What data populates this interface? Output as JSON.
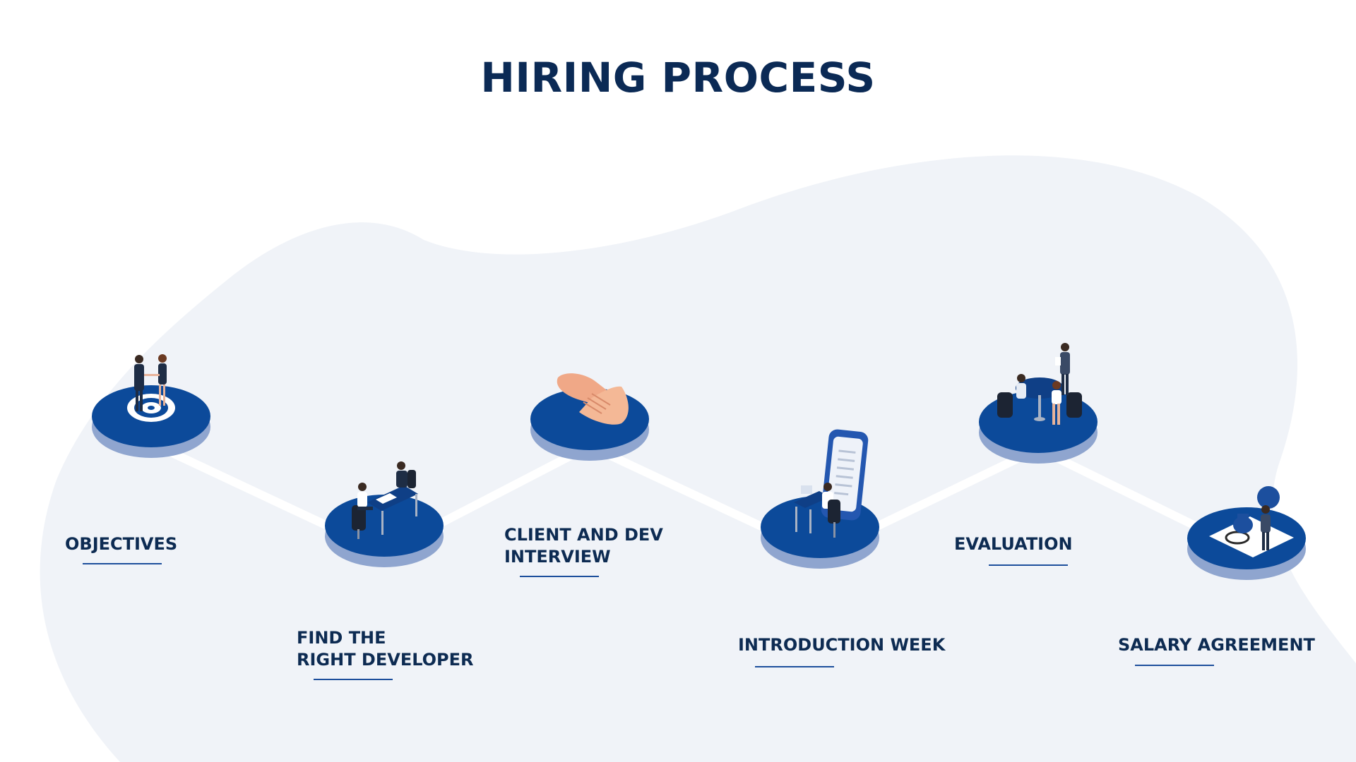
{
  "header": {
    "title": "HIRING PROCESS"
  },
  "colors": {
    "background": "#ffffff",
    "blob": "#f0f3f8",
    "disc_top": "#0c4a9a",
    "disc_side": "#8fa5cf",
    "connector": "#ffffff",
    "title_text": "#0b2a55",
    "label_text": "#0d2b52",
    "underline": "#1d4f9c"
  },
  "steps": [
    {
      "id": "objectives",
      "label": "OBJECTIVES",
      "icon": "target-with-handshake-icon"
    },
    {
      "id": "find-developer",
      "label": "FIND THE\nRIGHT DEVELOPER",
      "icon": "desk-meeting-icon"
    },
    {
      "id": "client-dev-interview",
      "label": "CLIENT AND DEV\nINTERVIEW",
      "icon": "handshake-icon"
    },
    {
      "id": "introduction-week",
      "label": "INTRODUCTION WEEK",
      "icon": "phone-and-desk-worker-icon"
    },
    {
      "id": "evaluation",
      "label": "EVALUATION",
      "icon": "team-table-meeting-icon"
    },
    {
      "id": "salary-agreement",
      "label": "SALARY AGREEMENT",
      "icon": "contract-stamp-icon"
    }
  ]
}
